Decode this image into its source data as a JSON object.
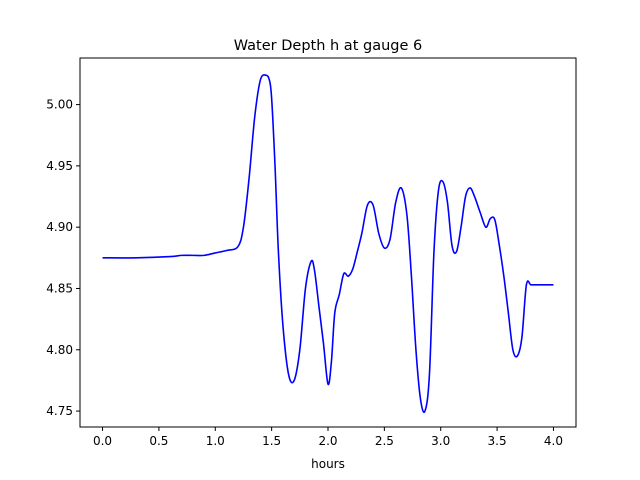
{
  "chart_data": {
    "type": "line",
    "title": "Water Depth h at gauge 6",
    "xlabel": "hours",
    "ylabel": "",
    "xlim": [
      -0.2,
      4.2
    ],
    "ylim": [
      4.737,
      5.038
    ],
    "x_ticks": [
      0.0,
      0.5,
      1.0,
      1.5,
      2.0,
      2.5,
      3.0,
      3.5,
      4.0
    ],
    "x_tick_labels": [
      "0.0",
      "0.5",
      "1.0",
      "1.5",
      "2.0",
      "2.5",
      "3.0",
      "3.5",
      "4.0"
    ],
    "y_ticks": [
      4.75,
      4.8,
      4.85,
      4.9,
      4.95,
      5.0
    ],
    "y_tick_labels": [
      "4.75",
      "4.80",
      "4.85",
      "4.90",
      "4.95",
      "5.00"
    ],
    "grid": false,
    "series": [
      {
        "color": "#0000ff",
        "x": [
          0.0,
          0.3,
          0.6,
          0.7,
          0.8,
          0.9,
          1.0,
          1.1,
          1.2,
          1.25,
          1.3,
          1.35,
          1.4,
          1.45,
          1.48,
          1.5,
          1.53,
          1.56,
          1.6,
          1.65,
          1.7,
          1.75,
          1.8,
          1.85,
          1.88,
          1.92,
          1.96,
          2.0,
          2.03,
          2.06,
          2.1,
          2.14,
          2.18,
          2.22,
          2.26,
          2.3,
          2.35,
          2.4,
          2.45,
          2.5,
          2.55,
          2.6,
          2.65,
          2.7,
          2.74,
          2.78,
          2.82,
          2.86,
          2.9,
          2.94,
          2.98,
          3.02,
          3.06,
          3.1,
          3.14,
          3.18,
          3.22,
          3.26,
          3.3,
          3.35,
          3.4,
          3.44,
          3.48,
          3.52,
          3.56,
          3.6,
          3.64,
          3.68,
          3.72,
          3.76,
          3.8,
          3.85,
          3.9,
          3.95,
          4.0
        ],
        "y": [
          4.875,
          4.875,
          4.876,
          4.877,
          4.877,
          4.877,
          4.879,
          4.881,
          4.884,
          4.9,
          4.94,
          4.99,
          5.02,
          5.024,
          5.02,
          5.005,
          4.95,
          4.88,
          4.82,
          4.78,
          4.775,
          4.8,
          4.85,
          4.872,
          4.865,
          4.835,
          4.805,
          4.772,
          4.79,
          4.83,
          4.845,
          4.862,
          4.86,
          4.866,
          4.88,
          4.895,
          4.918,
          4.918,
          4.895,
          4.883,
          4.89,
          4.92,
          4.932,
          4.91,
          4.86,
          4.8,
          4.76,
          4.75,
          4.78,
          4.88,
          4.93,
          4.937,
          4.92,
          4.885,
          4.88,
          4.9,
          4.925,
          4.932,
          4.925,
          4.912,
          4.9,
          4.907,
          4.906,
          4.885,
          4.86,
          4.83,
          4.8,
          4.795,
          4.81,
          4.853,
          4.853,
          4.853,
          4.853,
          4.853,
          4.853
        ]
      }
    ]
  }
}
